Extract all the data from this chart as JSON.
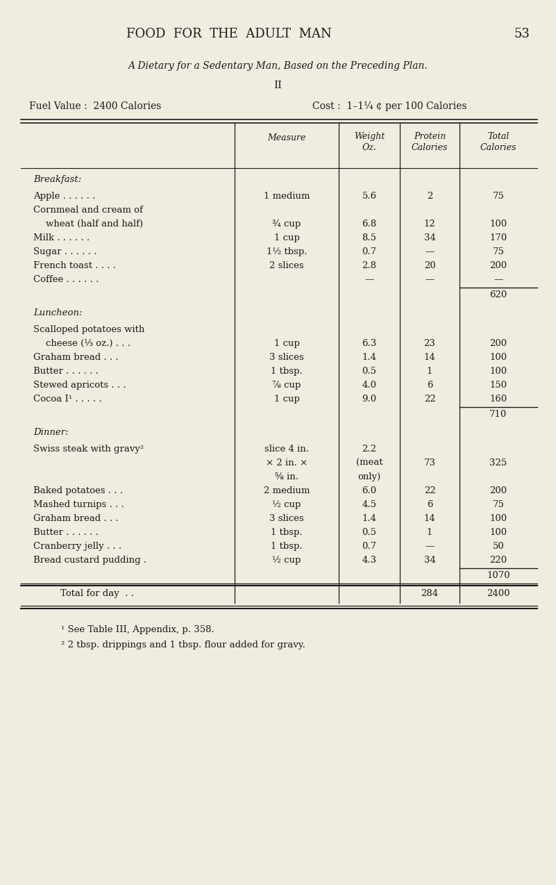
{
  "bg_color": "#f0ece0",
  "text_color": "#1a1a1a",
  "page_title": "FOOD  FOR  THE  ADULT  MAN",
  "page_number": "53",
  "subtitle1": "A Dietary for a Sedentary Man, Based on the Preceding Plan.",
  "subtitle2": "II",
  "fuel_value": "Fuel Value :  2400 Calories",
  "cost": "Cost :  1–1¼ ¢ per 100 Calories",
  "sections": [
    {
      "section": "Breakfast:",
      "items": [
        {
          "name": "Apple . . . . . .",
          "measure": "1 medium",
          "weight": "5.6",
          "protein": "2",
          "total": "75",
          "indent": 1
        },
        {
          "name": "Cornmeal and cream of",
          "measure": "",
          "weight": "",
          "protein": "",
          "total": "",
          "indent": 1
        },
        {
          "name": "wheat (half and half)",
          "measure": "¾ cup",
          "weight": "6.8",
          "protein": "12",
          "total": "100",
          "indent": 2
        },
        {
          "name": "Milk . . . . . .",
          "measure": "1 cup",
          "weight": "8.5",
          "protein": "34",
          "total": "170",
          "indent": 1
        },
        {
          "name": "Sugar . . . . . .",
          "measure": "1½ tbsp.",
          "weight": "0.7",
          "protein": "—",
          "total": "75",
          "indent": 1
        },
        {
          "name": "French toast . . . .",
          "measure": "2 slices",
          "weight": "2.8",
          "protein": "20",
          "total": "200",
          "indent": 1
        },
        {
          "name": "Coffee . . . . . .",
          "measure": "",
          "weight": "—",
          "protein": "—",
          "total": "—",
          "indent": 1
        }
      ],
      "subtotal": "620"
    },
    {
      "section": "Luncheon:",
      "items": [
        {
          "name": "Scalloped potatoes with",
          "measure": "",
          "weight": "",
          "protein": "",
          "total": "",
          "indent": 1
        },
        {
          "name": "cheese (⅓ oz.) . . .",
          "measure": "1 cup",
          "weight": "6.3",
          "protein": "23",
          "total": "200",
          "indent": 2
        },
        {
          "name": "Graham bread . . .",
          "measure": "3 slices",
          "weight": "1.4",
          "protein": "14",
          "total": "100",
          "indent": 1
        },
        {
          "name": "Butter . . . . . .",
          "measure": "1 tbsp.",
          "weight": "0.5",
          "protein": "1",
          "total": "100",
          "indent": 1
        },
        {
          "name": "Stewed apricots . . .",
          "measure": "⅞ cup",
          "weight": "4.0",
          "protein": "6",
          "total": "150",
          "indent": 1
        },
        {
          "name": "Cocoa I¹ . . . . .",
          "measure": "1 cup",
          "weight": "9.0",
          "protein": "22",
          "total": "160",
          "indent": 1
        }
      ],
      "subtotal": "710"
    },
    {
      "section": "Dinner:",
      "items": [
        {
          "name": "Swiss steak with gravy²",
          "measure": "slice 4 in.",
          "weight": "2.2",
          "protein": "",
          "total": "",
          "indent": 1
        },
        {
          "name": "",
          "measure": "× 2 in. ×",
          "weight": "(meat",
          "protein": "73",
          "total": "325",
          "indent": 1
        },
        {
          "name": "",
          "measure": "⅝ in.",
          "weight": "only)",
          "protein": "",
          "total": "",
          "indent": 1
        },
        {
          "name": "Baked potatoes . . .",
          "measure": "2 medium",
          "weight": "6.0",
          "protein": "22",
          "total": "200",
          "indent": 1
        },
        {
          "name": "Mashed turnips . . .",
          "measure": "½ cup",
          "weight": "4.5",
          "protein": "6",
          "total": "75",
          "indent": 1
        },
        {
          "name": "Graham bread . . .",
          "measure": "3 slices",
          "weight": "1.4",
          "protein": "14",
          "total": "100",
          "indent": 1
        },
        {
          "name": "Butter . . . . . .",
          "measure": "1 tbsp.",
          "weight": "0.5",
          "protein": "1",
          "total": "100",
          "indent": 1
        },
        {
          "name": "Cranberry jelly . . .",
          "measure": "1 tbsp.",
          "weight": "0.7",
          "protein": "—",
          "total": "50",
          "indent": 1
        },
        {
          "name": "Bread custard pudding .",
          "measure": "½ cup",
          "weight": "4.3",
          "protein": "34",
          "total": "220",
          "indent": 1
        }
      ],
      "subtotal": "1070"
    }
  ],
  "total_protein": "284",
  "total_calories": "2400",
  "footnote1": "¹ See Table III, Appendix, p. 358.",
  "footnote2": "² 2 tbsp. drippings and 1 tbsp. flour added for gravy."
}
